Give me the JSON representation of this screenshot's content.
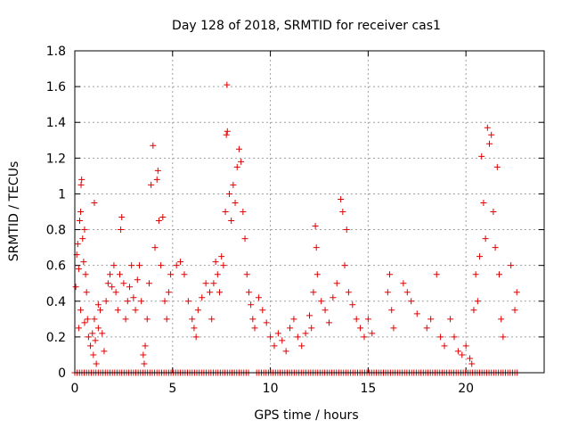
{
  "chart_data": {
    "type": "scatter",
    "title": "Day 128 of 2018, SRMTID for receiver cas1",
    "xlabel": "GPS time / hours",
    "ylabel": "SRMTID / TECUs",
    "xlim": [
      0,
      24
    ],
    "ylim": [
      0,
      1.8
    ],
    "x_ticks": [
      0,
      5,
      10,
      15,
      20
    ],
    "x_tick_labels": [
      "0",
      "5",
      "10",
      "15",
      "20"
    ],
    "y_ticks": [
      0,
      0.2,
      0.4,
      0.6,
      0.8,
      1,
      1.2,
      1.4,
      1.6,
      1.8
    ],
    "y_tick_labels": [
      "0",
      "0.2",
      "0.4",
      "0.6",
      "0.8",
      "1",
      "1.2",
      "1.4",
      "1.6",
      "1.8"
    ],
    "grid": true,
    "marker": "+",
    "color": "#e00000",
    "series": [
      {
        "name": "SRMTID",
        "points": [
          [
            0.05,
            0.48
          ],
          [
            0.1,
            0.66
          ],
          [
            0.15,
            0.72
          ],
          [
            0.2,
            0.58
          ],
          [
            0.25,
            0.85
          ],
          [
            0.3,
            0.9
          ],
          [
            0.32,
            1.05
          ],
          [
            0.35,
            1.08
          ],
          [
            0.4,
            0.75
          ],
          [
            0.45,
            0.62
          ],
          [
            0.5,
            0.8
          ],
          [
            0.55,
            0.55
          ],
          [
            0.6,
            0.45
          ],
          [
            0.65,
            0.3
          ],
          [
            0.7,
            0.2
          ],
          [
            0.2,
            0.25
          ],
          [
            0.3,
            0.35
          ],
          [
            0.5,
            0.28
          ],
          [
            0.8,
            0.15
          ],
          [
            0.9,
            0.22
          ],
          [
            0.95,
            0.1
          ],
          [
            1.0,
            0.3
          ],
          [
            1.05,
            0.18
          ],
          [
            1.1,
            0.05
          ],
          [
            1.2,
            0.25
          ],
          [
            1.3,
            0.35
          ],
          [
            1.4,
            0.22
          ],
          [
            1.5,
            0.12
          ],
          [
            1.6,
            0.4
          ],
          [
            1.7,
            0.5
          ],
          [
            1.8,
            0.55
          ],
          [
            1.9,
            0.48
          ],
          [
            1.0,
            0.95
          ],
          [
            1.2,
            0.38
          ],
          [
            2.0,
            0.6
          ],
          [
            2.1,
            0.45
          ],
          [
            2.2,
            0.35
          ],
          [
            2.3,
            0.55
          ],
          [
            2.35,
            0.8
          ],
          [
            2.4,
            0.87
          ],
          [
            2.5,
            0.5
          ],
          [
            2.6,
            0.3
          ],
          [
            2.7,
            0.4
          ],
          [
            2.8,
            0.48
          ],
          [
            2.9,
            0.6
          ],
          [
            3.0,
            0.42
          ],
          [
            3.1,
            0.35
          ],
          [
            3.2,
            0.52
          ],
          [
            3.3,
            0.6
          ],
          [
            3.4,
            0.4
          ],
          [
            3.5,
            0.1
          ],
          [
            3.55,
            0.05
          ],
          [
            3.6,
            0.15
          ],
          [
            3.7,
            0.3
          ],
          [
            3.8,
            0.5
          ],
          [
            3.9,
            1.05
          ],
          [
            4.0,
            1.27
          ],
          [
            4.1,
            0.7
          ],
          [
            4.2,
            1.08
          ],
          [
            4.25,
            1.13
          ],
          [
            4.3,
            0.85
          ],
          [
            4.4,
            0.6
          ],
          [
            4.5,
            0.87
          ],
          [
            4.6,
            0.4
          ],
          [
            4.7,
            0.3
          ],
          [
            4.8,
            0.45
          ],
          [
            4.9,
            0.55
          ],
          [
            5.2,
            0.6
          ],
          [
            5.4,
            0.62
          ],
          [
            5.6,
            0.55
          ],
          [
            5.8,
            0.4
          ],
          [
            6.0,
            0.3
          ],
          [
            6.1,
            0.25
          ],
          [
            6.2,
            0.2
          ],
          [
            6.3,
            0.35
          ],
          [
            6.5,
            0.42
          ],
          [
            6.7,
            0.5
          ],
          [
            6.9,
            0.45
          ],
          [
            7.0,
            0.3
          ],
          [
            7.1,
            0.5
          ],
          [
            7.2,
            0.62
          ],
          [
            7.3,
            0.55
          ],
          [
            7.4,
            0.45
          ],
          [
            7.5,
            0.65
          ],
          [
            7.6,
            0.6
          ],
          [
            7.7,
            0.9
          ],
          [
            7.75,
            1.33
          ],
          [
            7.8,
            1.35
          ],
          [
            7.78,
            1.61
          ],
          [
            7.9,
            1.0
          ],
          [
            8.0,
            0.85
          ],
          [
            8.1,
            1.05
          ],
          [
            8.2,
            0.95
          ],
          [
            8.3,
            1.15
          ],
          [
            8.4,
            1.25
          ],
          [
            8.5,
            1.18
          ],
          [
            8.6,
            0.9
          ],
          [
            8.7,
            0.75
          ],
          [
            8.8,
            0.55
          ],
          [
            8.9,
            0.45
          ],
          [
            9.0,
            0.38
          ],
          [
            9.1,
            0.3
          ],
          [
            9.2,
            0.25
          ],
          [
            9.4,
            0.42
          ],
          [
            9.6,
            0.35
          ],
          [
            9.8,
            0.28
          ],
          [
            10.0,
            0.2
          ],
          [
            10.2,
            0.15
          ],
          [
            10.4,
            0.22
          ],
          [
            10.6,
            0.18
          ],
          [
            10.8,
            0.12
          ],
          [
            11.0,
            0.25
          ],
          [
            11.2,
            0.3
          ],
          [
            11.4,
            0.2
          ],
          [
            11.6,
            0.15
          ],
          [
            11.8,
            0.22
          ],
          [
            12.0,
            0.32
          ],
          [
            12.1,
            0.25
          ],
          [
            12.2,
            0.45
          ],
          [
            12.3,
            0.82
          ],
          [
            12.35,
            0.7
          ],
          [
            12.4,
            0.55
          ],
          [
            12.6,
            0.4
          ],
          [
            12.8,
            0.35
          ],
          [
            13.0,
            0.28
          ],
          [
            13.2,
            0.42
          ],
          [
            13.4,
            0.5
          ],
          [
            13.6,
            0.97
          ],
          [
            13.7,
            0.9
          ],
          [
            13.8,
            0.6
          ],
          [
            13.9,
            0.8
          ],
          [
            14.0,
            0.45
          ],
          [
            14.2,
            0.38
          ],
          [
            14.4,
            0.3
          ],
          [
            14.6,
            0.25
          ],
          [
            14.8,
            0.2
          ],
          [
            15.0,
            0.3
          ],
          [
            15.2,
            0.22
          ],
          [
            16.0,
            0.45
          ],
          [
            16.1,
            0.55
          ],
          [
            16.2,
            0.35
          ],
          [
            16.3,
            0.25
          ],
          [
            16.8,
            0.5
          ],
          [
            17.0,
            0.45
          ],
          [
            17.2,
            0.4
          ],
          [
            17.5,
            0.33
          ],
          [
            18.0,
            0.25
          ],
          [
            18.2,
            0.3
          ],
          [
            18.5,
            0.55
          ],
          [
            18.7,
            0.2
          ],
          [
            18.9,
            0.15
          ],
          [
            19.2,
            0.3
          ],
          [
            19.4,
            0.2
          ],
          [
            19.6,
            0.12
          ],
          [
            19.8,
            0.1
          ],
          [
            20.0,
            0.15
          ],
          [
            20.2,
            0.08
          ],
          [
            20.3,
            0.05
          ],
          [
            20.4,
            0.35
          ],
          [
            20.5,
            0.55
          ],
          [
            20.6,
            0.4
          ],
          [
            20.7,
            0.65
          ],
          [
            20.8,
            1.21
          ],
          [
            20.9,
            0.95
          ],
          [
            21.0,
            0.75
          ],
          [
            21.1,
            1.37
          ],
          [
            21.2,
            1.28
          ],
          [
            21.3,
            1.33
          ],
          [
            21.4,
            0.9
          ],
          [
            21.5,
            0.7
          ],
          [
            21.6,
            1.15
          ],
          [
            21.7,
            0.55
          ],
          [
            21.8,
            0.3
          ],
          [
            21.9,
            0.2
          ],
          [
            22.3,
            0.6
          ],
          [
            22.5,
            0.35
          ],
          [
            22.6,
            0.45
          ]
        ],
        "zero_baseline_ranges": [
          [
            0.0,
            8.9
          ],
          [
            9.3,
            22.7
          ]
        ]
      }
    ]
  }
}
